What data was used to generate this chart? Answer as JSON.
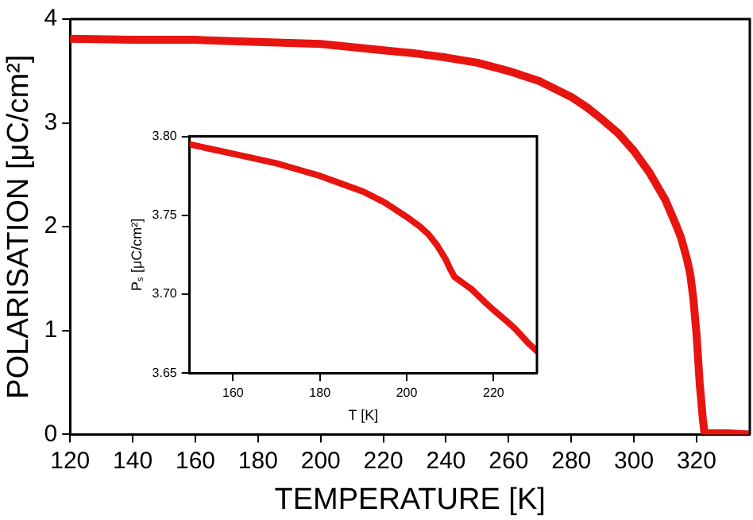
{
  "chart_data": [
    {
      "type": "line",
      "xlabel": "TEMPERATURE [K]",
      "ylabel": "POLARISATION [μC/cm²]",
      "xlim": [
        120,
        337
      ],
      "xticks": [
        120,
        140,
        160,
        180,
        200,
        220,
        240,
        260,
        280,
        300,
        320
      ],
      "ylim": [
        0,
        4
      ],
      "yticks": [
        0,
        1,
        2,
        3,
        4
      ],
      "grid": false,
      "legend": false,
      "marker": "none",
      "line_style": "solid",
      "series": [
        {
          "color": "#e8140f",
          "x": [
            120,
            140,
            160,
            180,
            200,
            210,
            220,
            230,
            240,
            250,
            260,
            270,
            280,
            285,
            290,
            295,
            300,
            305,
            310,
            313,
            315,
            317,
            318,
            319,
            320,
            321,
            322,
            322.5,
            323,
            330,
            337
          ],
          "values": [
            3.81,
            3.8,
            3.8,
            3.78,
            3.76,
            3.73,
            3.7,
            3.67,
            3.63,
            3.58,
            3.5,
            3.4,
            3.25,
            3.15,
            3.03,
            2.9,
            2.73,
            2.52,
            2.26,
            2.05,
            1.9,
            1.68,
            1.54,
            1.3,
            0.96,
            0.49,
            0.15,
            0.02,
            0.01,
            0.01,
            0
          ]
        }
      ]
    },
    {
      "type": "line",
      "xlabel": "T [K]",
      "ylabel": "Pₛ [μC/cm²]",
      "xlim": [
        150,
        230
      ],
      "xticks": [
        160,
        180,
        200,
        220
      ],
      "ylim": [
        3.65,
        3.8
      ],
      "yticks": [
        {
          "value": 3.65,
          "label": "3.65"
        },
        {
          "value": 3.7,
          "label": "3.70"
        },
        {
          "value": 3.75,
          "label": "3.75"
        },
        {
          "value": 3.8,
          "label": "3.80"
        }
      ],
      "grid": false,
      "legend": false,
      "marker": "none",
      "line_style": "solid",
      "series": [
        {
          "color": "#e8140f",
          "x": [
            150,
            155,
            160,
            165,
            170,
            175,
            180,
            185,
            190,
            195,
            200,
            203,
            205,
            207,
            209,
            210,
            211,
            213,
            215,
            218,
            220,
            223,
            225,
            228,
            230
          ],
          "values": [
            3.795,
            3.792,
            3.789,
            3.786,
            3.783,
            3.779,
            3.775,
            3.77,
            3.765,
            3.758,
            3.749,
            3.743,
            3.738,
            3.731,
            3.722,
            3.716,
            3.711,
            3.707,
            3.703,
            3.695,
            3.69,
            3.683,
            3.678,
            3.669,
            3.664
          ]
        }
      ]
    }
  ]
}
